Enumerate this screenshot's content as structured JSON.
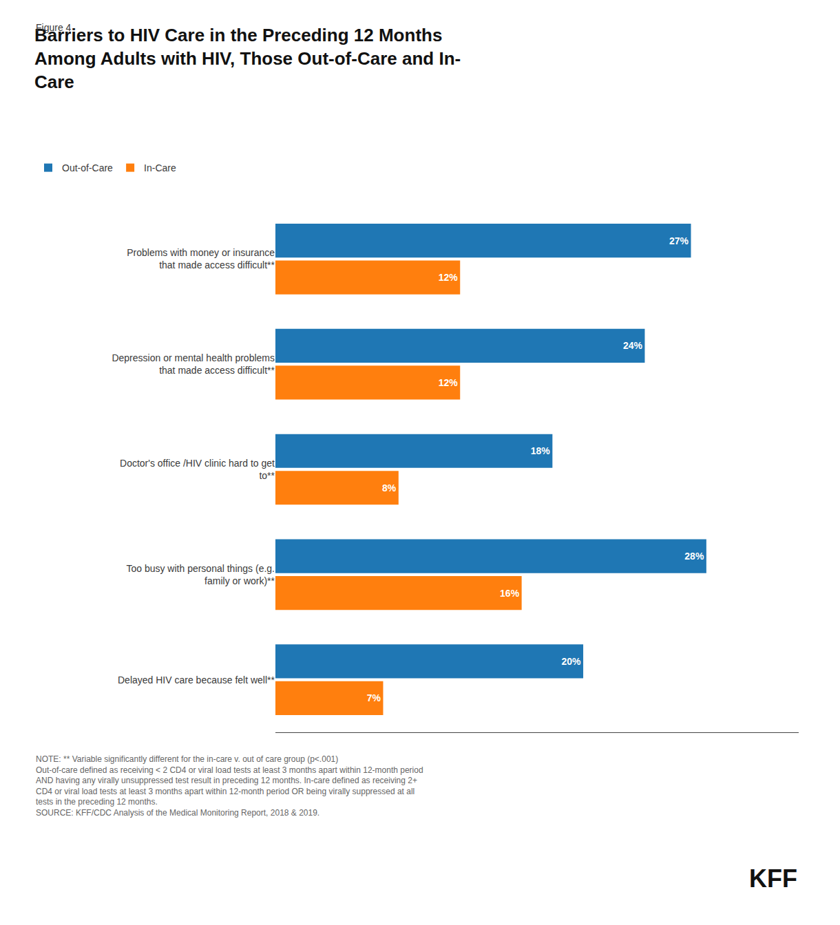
{
  "chart_data": {
    "type": "bar",
    "orientation": "horizontal",
    "title": "Barriers to HIV Care in the Preceding 12 Months\nAmong Adults with HIV, Those Out-of-Care and In-\nCare",
    "annotations": [
      "Figure 4",
      "NOTE: ** Variable significantly different for the in-care v. out of care group (p<.001)\nOut-of-care defined as receiving < 2 CD4 or viral load tests at least 3 months apart within 12-month period\nAND having any virally unsuppressed test result in preceding 12 months. In-care defined as receiving 2+\nCD4 or viral load tests at least 3 months apart within 12-month period OR being virally suppressed at all\ntests in the preceding 12 months.\nSOURCE: KFF/CDC Analysis of the Medical Monitoring Report, 2018 & 2019.",
      "KFF"
    ],
    "categories": [
      "Problems with money or insurance\nthat made access difficult**",
      "Depression or mental health problems\nthat made access difficult**",
      "Doctor's office /HIV clinic hard to get\nto**",
      "Too busy with personal things (e.g.\nfamily or work)**",
      "Delayed HIV care because felt well**"
    ],
    "series": [
      {
        "name": "Out-of-Care",
        "values": [
          27,
          24,
          18,
          28,
          20
        ],
        "value_labels": [
          "27%",
          "24%",
          "18%",
          "28%",
          "20%"
        ]
      },
      {
        "name": "In-Care",
        "values": [
          12,
          12,
          8,
          16,
          7
        ],
        "value_labels": [
          "12%",
          "12%",
          "8%",
          "16%",
          "7%"
        ]
      }
    ],
    "xlim": [
      0,
      34
    ],
    "xticks": [],
    "tick_labels": "y",
    "grid": false,
    "legend": "upper left",
    "data_labels": true
  }
}
